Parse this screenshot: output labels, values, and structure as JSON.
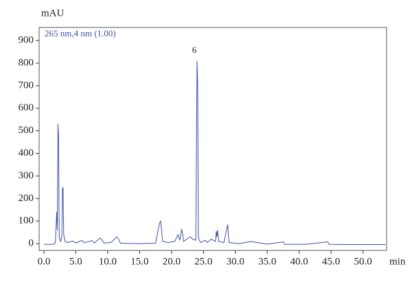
{
  "chart_data": {
    "type": "line",
    "y_label": "mAU",
    "x_label": "min",
    "annotations": [
      "265 nm,4 nm (1.00)",
      "6"
    ],
    "color": "#3c4fa8",
    "xlim": [
      -0.75,
      53.7
    ],
    "ylim": [
      -30,
      958
    ],
    "xticks": [
      {
        "value": 0,
        "label": "0.0"
      },
      {
        "value": 5,
        "label": "5.0"
      },
      {
        "value": 10,
        "label": "10.0"
      },
      {
        "value": 15,
        "label": "15.0"
      },
      {
        "value": 20,
        "label": "20.0"
      },
      {
        "value": 25,
        "label": "25.0"
      },
      {
        "value": 30,
        "label": "30.0"
      },
      {
        "value": 35,
        "label": "35.0"
      },
      {
        "value": 40,
        "label": "40.0"
      },
      {
        "value": 45,
        "label": "45.0"
      },
      {
        "value": 50,
        "label": "50.0"
      }
    ],
    "yticks": [
      0,
      100,
      200,
      300,
      400,
      500,
      600,
      700,
      800,
      900
    ],
    "x": [
      0,
      1.5,
      1.8,
      2.0,
      2.1,
      2.2,
      2.3,
      2.4,
      2.6,
      2.8,
      2.9,
      3.0,
      3.1,
      3.3,
      3.8,
      4.5,
      5.0,
      6.0,
      6.3,
      7.2,
      7.5,
      7.9,
      8.8,
      9.0,
      9.4,
      10.5,
      11.4,
      11.6,
      12.0,
      15.0,
      17.5,
      18.1,
      18.3,
      18.6,
      19.5,
      20.5,
      21.0,
      21.3,
      21.6,
      21.9,
      22.6,
      23.0,
      23.3,
      23.8,
      24.0,
      24.1,
      24.2,
      24.5,
      25.3,
      25.6,
      26.2,
      26.9,
      27.0,
      27.1,
      27.2,
      27.4,
      28.2,
      28.8,
      29.0,
      30.5,
      32.5,
      32.8,
      35.0,
      37.5,
      37.7,
      41.0,
      44.5,
      44.7,
      48.0,
      53.5
    ],
    "values": [
      -3,
      -3,
      5,
      140,
      60,
      530,
      470,
      30,
      10,
      30,
      240,
      250,
      40,
      10,
      5,
      12,
      3,
      15,
      4,
      10,
      15,
      3,
      25,
      20,
      3,
      5,
      30,
      25,
      2,
      0,
      2,
      90,
      100,
      10,
      5,
      10,
      40,
      15,
      65,
      10,
      25,
      30,
      20,
      15,
      810,
      700,
      30,
      5,
      15,
      5,
      20,
      10,
      55,
      30,
      60,
      10,
      5,
      85,
      5,
      0,
      10,
      8,
      -2,
      8,
      -3,
      -3,
      8,
      -3,
      -4,
      -4
    ]
  }
}
